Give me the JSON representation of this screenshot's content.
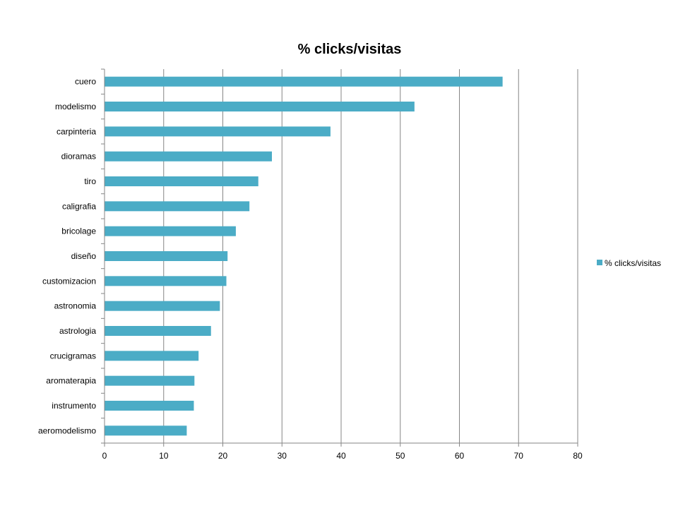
{
  "chart_data": {
    "type": "bar",
    "orientation": "horizontal",
    "title": "% clicks/visitas",
    "xlabel": "",
    "ylabel": "",
    "categories": [
      "cuero",
      "modelismo",
      "carpinteria",
      "dioramas",
      "tiro",
      "caligrafia",
      "bricolage",
      "diseño",
      "customizacion",
      "astronomia",
      "astrologia",
      "crucigramas",
      "aromaterapia",
      "instrumento",
      "aeromodelismo"
    ],
    "series": [
      {
        "name": "% clicks/visitas",
        "color": "#4BACC6",
        "values": [
          67.3,
          52.4,
          38.2,
          28.3,
          26.0,
          24.5,
          22.2,
          20.8,
          20.6,
          19.5,
          18.0,
          15.9,
          15.2,
          15.1,
          13.9
        ]
      }
    ],
    "xlim": [
      0,
      80
    ],
    "xticks": [
      0,
      10,
      20,
      30,
      40,
      50,
      60,
      70,
      80
    ],
    "grid": "vertical",
    "legend": "right"
  }
}
